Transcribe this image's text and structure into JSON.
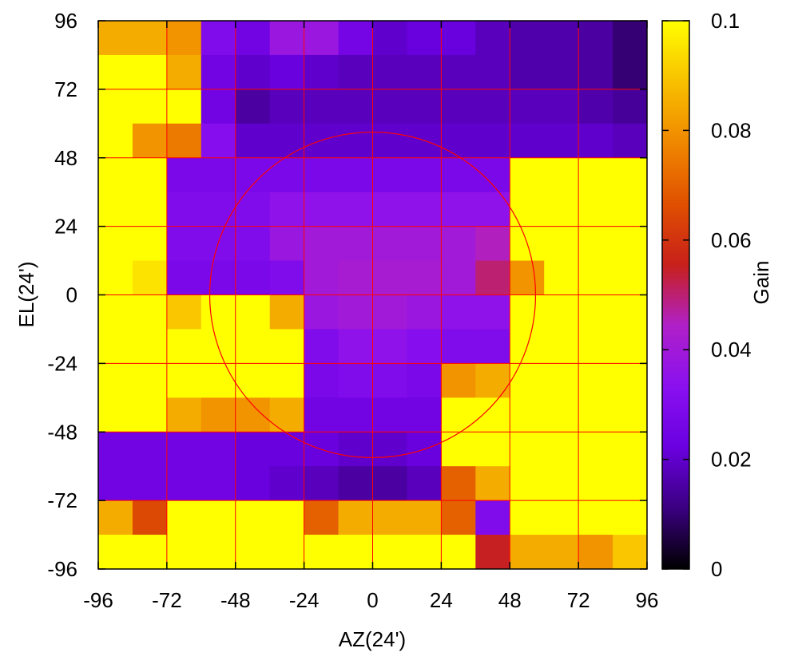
{
  "chart_data": {
    "type": "heatmap",
    "title": "",
    "xlabel": "AZ(24')",
    "ylabel": "EL(24')",
    "colorbar_label": "Gain",
    "xlim": [
      -96,
      96
    ],
    "ylim": [
      -96,
      96
    ],
    "x_ticks": [
      "-96",
      "-72",
      "-48",
      "-24",
      "0",
      "24",
      "48",
      "72",
      "96"
    ],
    "y_ticks": [
      "-96",
      "-72",
      "-48",
      "-24",
      "0",
      "24",
      "48",
      "72",
      "96"
    ],
    "colorbar_range": [
      0,
      0.1
    ],
    "colorbar_ticks": [
      "0",
      "0.02",
      "0.04",
      "0.06",
      "0.08",
      "0.1"
    ],
    "grid": true,
    "grid_color": "#ff0000",
    "colormap": [
      "#000000",
      "#3a0080",
      "#6a00e0",
      "#8a10f0",
      "#b020c8",
      "#c8201a",
      "#e05000",
      "#f08800",
      "#f8c000",
      "#ffff00"
    ],
    "circle": {
      "center": [
        0,
        0
      ],
      "radius": 57
    },
    "cell_size": 12,
    "x_cells": [
      -90,
      -78,
      -66,
      -54,
      -42,
      -30,
      -18,
      -6,
      6,
      18,
      30,
      42,
      54,
      66,
      78,
      90
    ],
    "y_cells": [
      90,
      78,
      66,
      54,
      42,
      30,
      18,
      6,
      -6,
      -18,
      -30,
      -42,
      -54,
      -66,
      -78,
      -90
    ],
    "z": [
      [
        0.085,
        0.085,
        0.08,
        0.03,
        0.025,
        0.038,
        0.038,
        0.026,
        0.02,
        0.022,
        0.022,
        0.018,
        0.016,
        0.016,
        0.015,
        0.01
      ],
      [
        0.1,
        0.1,
        0.085,
        0.025,
        0.02,
        0.022,
        0.02,
        0.018,
        0.018,
        0.018,
        0.018,
        0.018,
        0.016,
        0.016,
        0.015,
        0.01
      ],
      [
        0.1,
        0.1,
        0.1,
        0.025,
        0.015,
        0.018,
        0.018,
        0.018,
        0.018,
        0.018,
        0.018,
        0.018,
        0.018,
        0.018,
        0.016,
        0.014
      ],
      [
        0.1,
        0.08,
        0.075,
        0.032,
        0.02,
        0.02,
        0.02,
        0.02,
        0.02,
        0.02,
        0.02,
        0.02,
        0.02,
        0.02,
        0.02,
        0.018
      ],
      [
        0.1,
        0.1,
        0.028,
        0.028,
        0.028,
        0.028,
        0.028,
        0.028,
        0.028,
        0.028,
        0.028,
        0.028,
        0.1,
        0.1,
        0.1,
        0.1
      ],
      [
        0.1,
        0.1,
        0.03,
        0.03,
        0.03,
        0.035,
        0.035,
        0.035,
        0.035,
        0.035,
        0.035,
        0.035,
        0.1,
        0.1,
        0.1,
        0.1
      ],
      [
        0.1,
        0.1,
        0.03,
        0.03,
        0.03,
        0.038,
        0.04,
        0.04,
        0.04,
        0.04,
        0.04,
        0.045,
        0.1,
        0.1,
        0.1,
        0.1
      ],
      [
        0.1,
        0.095,
        0.028,
        0.028,
        0.028,
        0.03,
        0.04,
        0.042,
        0.042,
        0.042,
        0.04,
        0.05,
        0.08,
        0.1,
        0.1,
        0.1
      ],
      [
        0.1,
        0.1,
        0.09,
        0.1,
        0.1,
        0.085,
        0.038,
        0.04,
        0.04,
        0.038,
        0.035,
        0.035,
        0.1,
        0.1,
        0.1,
        0.1
      ],
      [
        0.1,
        0.1,
        0.1,
        0.1,
        0.1,
        0.1,
        0.03,
        0.035,
        0.035,
        0.032,
        0.03,
        0.03,
        0.1,
        0.1,
        0.1,
        0.1
      ],
      [
        0.1,
        0.1,
        0.1,
        0.1,
        0.1,
        0.1,
        0.028,
        0.03,
        0.03,
        0.028,
        0.08,
        0.085,
        0.1,
        0.1,
        0.1,
        0.1
      ],
      [
        0.1,
        0.1,
        0.085,
        0.08,
        0.08,
        0.085,
        0.025,
        0.025,
        0.025,
        0.025,
        0.1,
        0.1,
        0.1,
        0.1,
        0.1,
        0.1
      ],
      [
        0.025,
        0.025,
        0.025,
        0.025,
        0.022,
        0.022,
        0.022,
        0.02,
        0.02,
        0.022,
        0.1,
        0.1,
        0.1,
        0.1,
        0.1,
        0.1
      ],
      [
        0.025,
        0.025,
        0.025,
        0.025,
        0.022,
        0.02,
        0.018,
        0.015,
        0.015,
        0.018,
        0.07,
        0.085,
        0.1,
        0.1,
        0.1,
        0.1
      ],
      [
        0.085,
        0.065,
        0.1,
        0.1,
        0.1,
        0.1,
        0.07,
        0.085,
        0.085,
        0.085,
        0.07,
        0.03,
        0.1,
        0.1,
        0.1,
        0.1
      ],
      [
        0.1,
        0.1,
        0.1,
        0.1,
        0.1,
        0.1,
        0.1,
        0.1,
        0.1,
        0.1,
        0.1,
        0.055,
        0.085,
        0.085,
        0.08,
        0.09
      ]
    ]
  }
}
